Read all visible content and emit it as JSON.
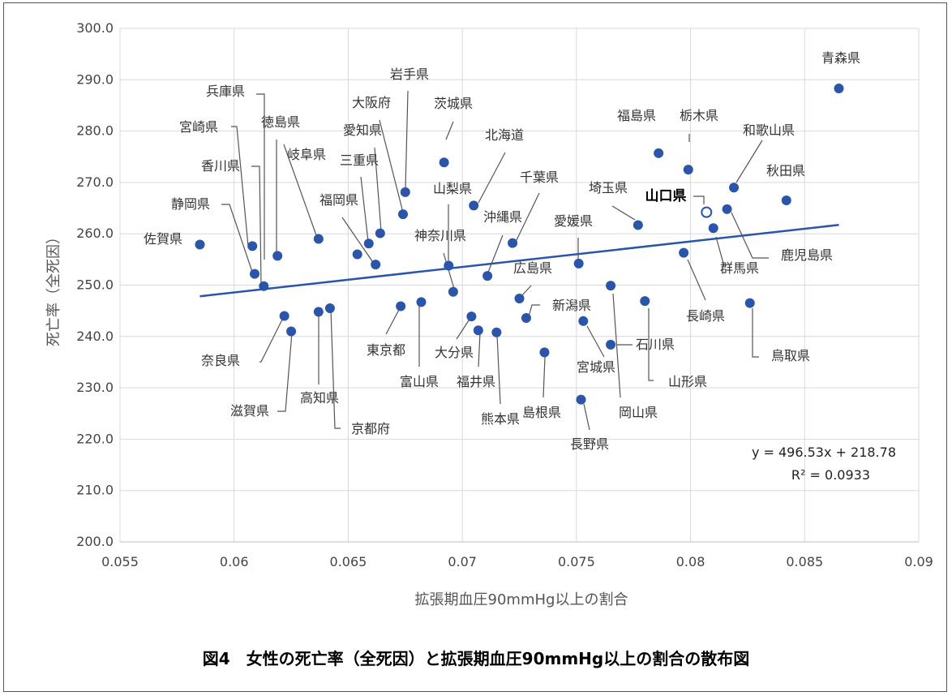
{
  "caption": "図4　女性の死亡率（全死因）と拡張期血圧90mmHg以上の割合の散布図",
  "chart_data": {
    "type": "scatter",
    "title": "",
    "xlabel": "拡張期血圧90mmHg以上の割合",
    "ylabel": "死亡率（全死因）",
    "xlim": [
      0.055,
      0.09
    ],
    "ylim": [
      200.0,
      300.0
    ],
    "x_ticks": [
      "0.055",
      "0.06",
      "0.065",
      "0.07",
      "0.075",
      "0.08",
      "0.085",
      "0.09"
    ],
    "y_ticks": [
      "200.0",
      "210.0",
      "220.0",
      "230.0",
      "240.0",
      "250.0",
      "260.0",
      "270.0",
      "280.0",
      "290.0",
      "300.0"
    ],
    "grid": true,
    "colors": {
      "point": "#2a55a8",
      "trend": "#2a55a8",
      "highlight_fill": "#ffffff"
    },
    "trendline": {
      "equation": "y = 496.53x + 218.78",
      "r2": "R² = 0.0933",
      "slope": 496.53,
      "intercept": 218.78
    },
    "points": [
      {
        "name": "青森県",
        "x": 0.0865,
        "y": 288.3
      },
      {
        "name": "福島県",
        "x": 0.0786,
        "y": 275.7
      },
      {
        "name": "栃木県",
        "x": 0.0799,
        "y": 272.5
      },
      {
        "name": "和歌山県",
        "x": 0.0819,
        "y": 269.0
      },
      {
        "name": "秋田県",
        "x": 0.0842,
        "y": 266.5
      },
      {
        "name": "山口県",
        "x": 0.0807,
        "y": 264.2,
        "highlight": true
      },
      {
        "name": "鹿児島県",
        "x": 0.0816,
        "y": 264.8
      },
      {
        "name": "埼玉県",
        "x": 0.0777,
        "y": 261.7
      },
      {
        "name": "群馬県",
        "x": 0.081,
        "y": 261.1
      },
      {
        "name": "長崎県",
        "x": 0.0797,
        "y": 256.3
      },
      {
        "name": "鳥取県",
        "x": 0.0826,
        "y": 246.5
      },
      {
        "name": "山形県",
        "x": 0.078,
        "y": 246.9
      },
      {
        "name": "石川県",
        "x": 0.0765,
        "y": 238.4
      },
      {
        "name": "岡山県",
        "x": 0.0765,
        "y": 249.9
      },
      {
        "name": "宮城県",
        "x": 0.0753,
        "y": 243.0
      },
      {
        "name": "愛媛県",
        "x": 0.0751,
        "y": 254.2
      },
      {
        "name": "長野県",
        "x": 0.0752,
        "y": 227.7
      },
      {
        "name": "島根県",
        "x": 0.0736,
        "y": 236.9
      },
      {
        "name": "新潟県",
        "x": 0.0728,
        "y": 243.6
      },
      {
        "name": "広島県",
        "x": 0.0725,
        "y": 247.4
      },
      {
        "name": "千葉県",
        "x": 0.0722,
        "y": 258.2
      },
      {
        "name": "熊本県",
        "x": 0.0715,
        "y": 240.8
      },
      {
        "name": "沖縄県",
        "x": 0.0711,
        "y": 251.8
      },
      {
        "name": "北海道",
        "x": 0.0705,
        "y": 265.5
      },
      {
        "name": "福井県",
        "x": 0.0707,
        "y": 241.2
      },
      {
        "name": "大分県",
        "x": 0.0704,
        "y": 243.9
      },
      {
        "name": "神奈川県",
        "x": 0.0696,
        "y": 248.7
      },
      {
        "name": "山梨県",
        "x": 0.0694,
        "y": 253.8
      },
      {
        "name": "茨城県",
        "x": 0.0692,
        "y": 273.9
      },
      {
        "name": "富山県",
        "x": 0.0682,
        "y": 246.7
      },
      {
        "name": "東京都",
        "x": 0.0673,
        "y": 245.9
      },
      {
        "name": "岩手県",
        "x": 0.0675,
        "y": 268.1
      },
      {
        "name": "大阪府",
        "x": 0.0674,
        "y": 263.8
      },
      {
        "name": "愛知県",
        "x": 0.0664,
        "y": 260.1
      },
      {
        "name": "三重県",
        "x": 0.0659,
        "y": 258.1
      },
      {
        "name": "福岡県",
        "x": 0.0662,
        "y": 254.0
      },
      {
        "name": "岐阜県",
        "x": 0.0654,
        "y": 256.0
      },
      {
        "name": "徳島県",
        "x": 0.0637,
        "y": 259.0
      },
      {
        "name": "兵庫県",
        "x": 0.0619,
        "y": 255.7
      },
      {
        "name": "京都府",
        "x": 0.0642,
        "y": 245.5
      },
      {
        "name": "高知県",
        "x": 0.0637,
        "y": 244.8
      },
      {
        "name": "滋賀県",
        "x": 0.0625,
        "y": 241.0
      },
      {
        "name": "奈良県",
        "x": 0.0622,
        "y": 244.0
      },
      {
        "name": "宮崎県",
        "x": 0.0608,
        "y": 257.6
      },
      {
        "name": "香川県",
        "x": 0.0613,
        "y": 249.8
      },
      {
        "name": "静岡県",
        "x": 0.0609,
        "y": 252.2
      },
      {
        "name": "佐賀県",
        "x": 0.0585,
        "y": 257.9
      }
    ]
  }
}
